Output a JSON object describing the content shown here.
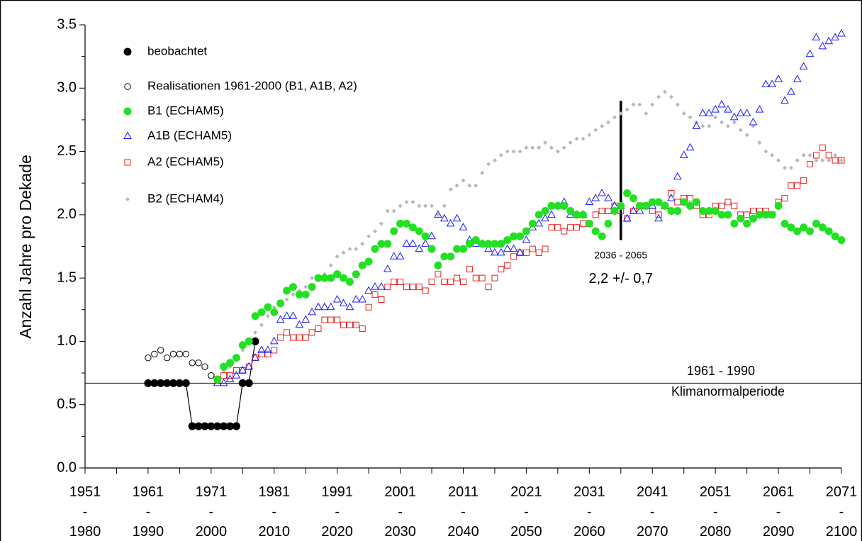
{
  "chart_data": {
    "type": "scatter",
    "y_label": "Anzahl Jahre pro Dekade",
    "xlim": [
      1951,
      2071
    ],
    "ylim": [
      0,
      3.5
    ],
    "xticks": [
      {
        "value": 1951,
        "label": "1951\n-\n1980"
      },
      {
        "value": 1961,
        "label": "1961\n-\n1990"
      },
      {
        "value": 1971,
        "label": "1971\n-\n2000"
      },
      {
        "value": 1981,
        "label": "1981\n-\n2010"
      },
      {
        "value": 1991,
        "label": "1991\n-\n2020"
      },
      {
        "value": 2001,
        "label": "2001\n-\n2030"
      },
      {
        "value": 2011,
        "label": "2011\n-\n2040"
      },
      {
        "value": 2021,
        "label": "2021\n-\n2050"
      },
      {
        "value": 2031,
        "label": "2031\n-\n2060"
      },
      {
        "value": 2041,
        "label": "2041\n-\n2070"
      },
      {
        "value": 2051,
        "label": "2051\n-\n2080"
      },
      {
        "value": 2061,
        "label": "2061\n-\n2090"
      },
      {
        "value": 2071,
        "label": "2071\n-\n2100"
      }
    ],
    "xminorticks": [
      1956,
      1966,
      1976,
      1986,
      1996,
      2006,
      2016,
      2026,
      2036,
      2046,
      2056,
      2066
    ],
    "yticks": [
      {
        "value": 0,
        "label": "0.0"
      },
      0.5,
      {
        "value": 1,
        "label": "1.0"
      },
      1.5,
      {
        "value": 2,
        "label": "2.0"
      },
      2.5,
      {
        "value": 3,
        "label": "3.0"
      },
      3.5
    ],
    "yminorticks": [
      0.25,
      0.75,
      1.25,
      1.75,
      2.25,
      2.75,
      3.25
    ],
    "reference_line": {
      "y": 0.67,
      "labels": [
        "1961 - 1990",
        "Klimanormalperiode"
      ]
    },
    "marker_line": {
      "x": 2036,
      "y": [
        1.8,
        2.9
      ]
    },
    "annotations": [
      "2036 - 2065",
      "2,2 +/- 0,7"
    ],
    "x": [
      1972,
      1973,
      1974,
      1975,
      1976,
      1977,
      1978,
      1979,
      1980,
      1981,
      1982,
      1983,
      1984,
      1985,
      1986,
      1987,
      1988,
      1989,
      1990,
      1991,
      1992,
      1993,
      1994,
      1995,
      1996,
      1997,
      1998,
      1999,
      2000,
      2001,
      2002,
      2003,
      2004,
      2005,
      2006,
      2007,
      2008,
      2009,
      2010,
      2011,
      2012,
      2013,
      2014,
      2015,
      2016,
      2017,
      2018,
      2019,
      2020,
      2021,
      2022,
      2023,
      2024,
      2025,
      2026,
      2027,
      2028,
      2029,
      2030,
      2031,
      2032,
      2033,
      2034,
      2035,
      2036,
      2037,
      2038,
      2039,
      2040,
      2041,
      2042,
      2043,
      2044,
      2045,
      2046,
      2047,
      2048,
      2049,
      2050,
      2051,
      2052,
      2053,
      2054,
      2055,
      2056,
      2057,
      2058,
      2059,
      2060,
      2061,
      2062,
      2063,
      2064,
      2065,
      2066,
      2067,
      2068,
      2069,
      2070,
      2071
    ],
    "series": [
      {
        "name": "beobachtet",
        "color": "#000000",
        "marker": "circle-filled",
        "line": true,
        "x": [
          1961,
          1962,
          1963,
          1964,
          1965,
          1966,
          1967,
          1968,
          1969,
          1970,
          1971,
          1972,
          1973,
          1974,
          1975,
          1976,
          1977,
          1978
        ],
        "values": [
          0.67,
          0.67,
          0.67,
          0.67,
          0.67,
          0.67,
          0.67,
          0.33,
          0.33,
          0.33,
          0.33,
          0.33,
          0.33,
          0.33,
          0.33,
          0.67,
          0.67,
          1.0
        ]
      },
      {
        "name": "Realisationen 1961-2000 (B1, A1B, A2)",
        "color": "#000000",
        "marker": "circle-open",
        "x": [
          1961,
          1962,
          1963,
          1964,
          1965,
          1966,
          1967,
          1968,
          1969,
          1970,
          1971,
          1972
        ],
        "values": [
          0.87,
          0.9,
          0.93,
          0.87,
          0.9,
          0.9,
          0.9,
          0.83,
          0.83,
          0.8,
          0.73,
          0.7
        ]
      },
      {
        "name": "B1 (ECHAM5)",
        "color": "#22e022",
        "marker": "circle-filled",
        "values": [
          0.7,
          0.8,
          0.83,
          0.87,
          0.97,
          1.0,
          1.2,
          1.23,
          1.27,
          1.23,
          1.3,
          1.4,
          1.43,
          1.37,
          1.37,
          1.43,
          1.5,
          1.5,
          1.5,
          1.53,
          1.5,
          1.47,
          1.53,
          1.6,
          1.63,
          1.73,
          1.77,
          1.77,
          1.87,
          1.93,
          1.93,
          1.9,
          1.87,
          1.83,
          1.73,
          1.6,
          1.67,
          1.67,
          1.73,
          1.73,
          1.77,
          1.8,
          1.77,
          1.77,
          1.77,
          1.77,
          1.8,
          1.83,
          1.83,
          1.87,
          1.93,
          2.0,
          2.03,
          2.07,
          2.07,
          2.07,
          2.03,
          2.0,
          2.0,
          1.93,
          1.87,
          1.83,
          1.93,
          2.03,
          2.07,
          2.17,
          2.13,
          2.07,
          2.07,
          2.1,
          2.1,
          2.07,
          2.03,
          2.03,
          2.1,
          2.07,
          2.1,
          2.03,
          2.03,
          2.03,
          2.0,
          2.0,
          1.93,
          1.97,
          1.93,
          1.97,
          2.0,
          2.0,
          2.0,
          2.07,
          1.93,
          1.9,
          1.87,
          1.9,
          1.87,
          1.93,
          1.9,
          1.87,
          1.83,
          1.8
        ]
      },
      {
        "name": "A1B (ECHAM5)",
        "color": "#1a1aff",
        "marker": "triangle-open",
        "values": [
          0.67,
          0.67,
          0.7,
          0.73,
          0.77,
          0.8,
          0.87,
          0.93,
          0.93,
          1.0,
          1.17,
          1.2,
          1.2,
          1.13,
          1.17,
          1.23,
          1.27,
          1.27,
          1.27,
          1.33,
          1.3,
          1.27,
          1.33,
          1.33,
          1.4,
          1.43,
          1.43,
          1.57,
          1.67,
          1.67,
          1.77,
          1.77,
          1.73,
          1.77,
          1.83,
          2.0,
          1.97,
          1.93,
          1.97,
          1.9,
          1.8,
          1.77,
          1.77,
          1.73,
          1.7,
          1.7,
          1.73,
          1.73,
          1.7,
          1.8,
          1.9,
          1.93,
          1.97,
          2.0,
          2.07,
          2.1,
          2.0,
          2.0,
          2.0,
          2.1,
          2.13,
          2.17,
          2.13,
          2.07,
          2.07,
          1.97,
          2.03,
          2.03,
          2.07,
          2.07,
          1.97,
          2.07,
          2.13,
          2.3,
          2.47,
          2.53,
          2.7,
          2.8,
          2.8,
          2.83,
          2.87,
          2.83,
          2.77,
          2.8,
          2.8,
          2.73,
          2.83,
          3.03,
          3.03,
          3.07,
          2.9,
          2.97,
          3.07,
          3.17,
          3.27,
          3.4,
          3.33,
          3.37,
          3.4,
          3.43
        ]
      },
      {
        "name": "A2 (ECHAM5)",
        "color": "#e82020",
        "marker": "square-open",
        "values": [
          0.7,
          0.73,
          0.73,
          0.77,
          0.77,
          0.8,
          0.87,
          0.9,
          0.9,
          0.93,
          1.03,
          1.07,
          1.03,
          1.03,
          1.03,
          1.07,
          1.1,
          1.17,
          1.17,
          1.17,
          1.13,
          1.13,
          1.13,
          1.1,
          1.27,
          1.37,
          1.33,
          1.43,
          1.47,
          1.47,
          1.43,
          1.43,
          1.43,
          1.4,
          1.47,
          1.53,
          1.47,
          1.47,
          1.5,
          1.47,
          1.57,
          1.5,
          1.5,
          1.43,
          1.5,
          1.57,
          1.6,
          1.67,
          1.7,
          1.7,
          1.73,
          1.7,
          1.73,
          1.9,
          1.9,
          1.87,
          1.9,
          1.9,
          1.93,
          1.93,
          2.0,
          2.03,
          2.03,
          2.07,
          2.03,
          1.97,
          2.03,
          2.07,
          2.07,
          2.03,
          2.0,
          2.07,
          2.17,
          2.1,
          2.13,
          2.13,
          2.07,
          2.0,
          2.0,
          2.07,
          2.07,
          2.1,
          2.07,
          2.0,
          2.0,
          2.03,
          2.03,
          2.03,
          2.0,
          2.1,
          2.13,
          2.23,
          2.23,
          2.27,
          2.4,
          2.47,
          2.53,
          2.47,
          2.43,
          2.43
        ]
      },
      {
        "name": "B2 (ECHAM4)",
        "color": "#b8b8b8",
        "marker": "diamond",
        "values": [
          0.7,
          0.77,
          0.8,
          0.87,
          0.93,
          1.0,
          1.07,
          1.13,
          1.2,
          1.27,
          1.3,
          1.33,
          1.37,
          1.4,
          1.43,
          1.5,
          1.5,
          1.53,
          1.6,
          1.67,
          1.7,
          1.73,
          1.73,
          1.77,
          1.83,
          1.87,
          1.93,
          2.03,
          2.03,
          2.07,
          2.1,
          2.1,
          2.07,
          2.07,
          2.07,
          2.0,
          2.07,
          2.2,
          2.23,
          2.27,
          2.23,
          2.23,
          2.33,
          2.4,
          2.43,
          2.47,
          2.5,
          2.5,
          2.5,
          2.53,
          2.53,
          2.53,
          2.57,
          2.53,
          2.5,
          2.53,
          2.57,
          2.6,
          2.6,
          2.63,
          2.67,
          2.7,
          2.73,
          2.77,
          2.8,
          2.83,
          2.87,
          2.87,
          2.8,
          2.87,
          2.93,
          2.97,
          2.93,
          2.87,
          2.8,
          2.77,
          2.73,
          2.7,
          2.7,
          2.77,
          2.73,
          2.7,
          2.73,
          2.67,
          2.63,
          2.7,
          2.57,
          2.5,
          2.47,
          2.43,
          2.37,
          2.37,
          2.43,
          2.47,
          2.47,
          2.43,
          2.43,
          2.43,
          2.47,
          2.43
        ]
      }
    ]
  }
}
